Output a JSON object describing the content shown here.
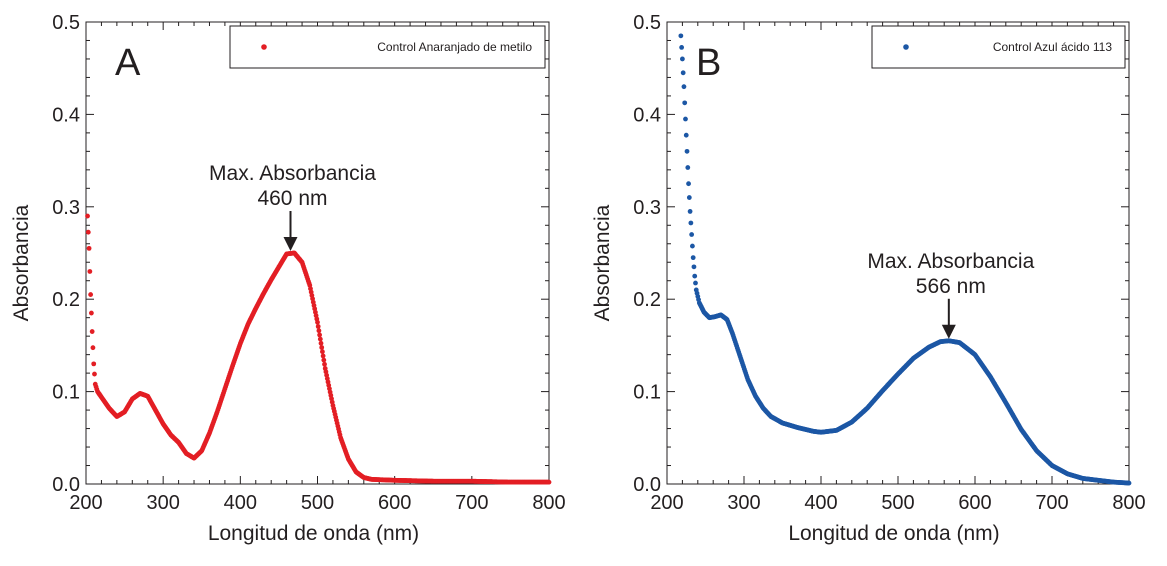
{
  "chart_data": [
    {
      "type": "scatter",
      "panel_label": "A",
      "xlabel_main": "Longitud de onda",
      "xlabel_unit": "(nm)",
      "ylabel": "Absorbancia",
      "xlim": [
        200,
        800
      ],
      "ylim": [
        0,
        0.5
      ],
      "x_ticks": [
        "200",
        "300",
        "400",
        "500",
        "600",
        "700",
        "800"
      ],
      "y_ticks": [
        "0.0",
        "0.1",
        "0.2",
        "0.3",
        "0.4",
        "0.5"
      ],
      "grid": false,
      "legend_position": "top-right",
      "series": [
        {
          "name": "Control Anaranjado de metilo",
          "color": "#e31e24",
          "points": [
            [
              202,
              0.29
            ],
            [
              204,
              0.255
            ],
            [
              206,
              0.205
            ],
            [
              208,
              0.165
            ],
            [
              210,
              0.13
            ],
            [
              212,
              0.108
            ],
            [
              215,
              0.1
            ],
            [
              220,
              0.094
            ],
            [
              230,
              0.082
            ],
            [
              240,
              0.073
            ],
            [
              250,
              0.078
            ],
            [
              260,
              0.092
            ],
            [
              270,
              0.098
            ],
            [
              280,
              0.095
            ],
            [
              290,
              0.08
            ],
            [
              300,
              0.065
            ],
            [
              310,
              0.053
            ],
            [
              320,
              0.045
            ],
            [
              330,
              0.033
            ],
            [
              340,
              0.028
            ],
            [
              350,
              0.036
            ],
            [
              360,
              0.055
            ],
            [
              370,
              0.078
            ],
            [
              380,
              0.103
            ],
            [
              390,
              0.128
            ],
            [
              400,
              0.152
            ],
            [
              410,
              0.173
            ],
            [
              420,
              0.19
            ],
            [
              430,
              0.206
            ],
            [
              440,
              0.221
            ],
            [
              450,
              0.235
            ],
            [
              460,
              0.249
            ],
            [
              470,
              0.25
            ],
            [
              480,
              0.24
            ],
            [
              490,
              0.215
            ],
            [
              500,
              0.175
            ],
            [
              510,
              0.125
            ],
            [
              520,
              0.085
            ],
            [
              530,
              0.05
            ],
            [
              540,
              0.027
            ],
            [
              550,
              0.013
            ],
            [
              560,
              0.007
            ],
            [
              570,
              0.005
            ],
            [
              600,
              0.004
            ],
            [
              650,
              0.003
            ],
            [
              700,
              0.003
            ],
            [
              750,
              0.002
            ],
            [
              800,
              0.002
            ]
          ]
        }
      ],
      "annotation": {
        "line1": "Max. Absorbancia",
        "line2": "460 nm",
        "x": 465,
        "y": 0.25
      }
    },
    {
      "type": "scatter",
      "panel_label": "B",
      "xlabel_main": "Longitud de onda",
      "xlabel_unit": "(nm)",
      "ylabel": "Absorbancia",
      "xlim": [
        200,
        800
      ],
      "ylim": [
        0,
        0.5
      ],
      "x_ticks": [
        "200",
        "300",
        "400",
        "500",
        "600",
        "700",
        "800"
      ],
      "y_ticks": [
        "0.0",
        "0.1",
        "0.2",
        "0.3",
        "0.4",
        "0.5"
      ],
      "grid": false,
      "legend_position": "top-right",
      "series": [
        {
          "name": "Control Azul ácido 113",
          "color": "#1c57a5",
          "points": [
            [
              218,
              0.485
            ],
            [
              220,
              0.46
            ],
            [
              222,
              0.43
            ],
            [
              224,
              0.395
            ],
            [
              226,
              0.36
            ],
            [
              228,
              0.325
            ],
            [
              230,
              0.295
            ],
            [
              232,
              0.27
            ],
            [
              234,
              0.245
            ],
            [
              236,
              0.225
            ],
            [
              238,
              0.21
            ],
            [
              242,
              0.196
            ],
            [
              248,
              0.186
            ],
            [
              255,
              0.18
            ],
            [
              262,
              0.181
            ],
            [
              270,
              0.183
            ],
            [
              278,
              0.178
            ],
            [
              285,
              0.163
            ],
            [
              295,
              0.138
            ],
            [
              305,
              0.113
            ],
            [
              315,
              0.095
            ],
            [
              325,
              0.082
            ],
            [
              335,
              0.073
            ],
            [
              350,
              0.066
            ],
            [
              370,
              0.061
            ],
            [
              390,
              0.057
            ],
            [
              400,
              0.056
            ],
            [
              420,
              0.058
            ],
            [
              440,
              0.067
            ],
            [
              460,
              0.082
            ],
            [
              480,
              0.101
            ],
            [
              500,
              0.119
            ],
            [
              520,
              0.136
            ],
            [
              540,
              0.148
            ],
            [
              555,
              0.154
            ],
            [
              566,
              0.155
            ],
            [
              580,
              0.153
            ],
            [
              600,
              0.14
            ],
            [
              620,
              0.116
            ],
            [
              640,
              0.088
            ],
            [
              660,
              0.059
            ],
            [
              680,
              0.036
            ],
            [
              700,
              0.02
            ],
            [
              720,
              0.011
            ],
            [
              740,
              0.006
            ],
            [
              760,
              0.004
            ],
            [
              780,
              0.002
            ],
            [
              800,
              0.001
            ]
          ]
        }
      ],
      "annotation": {
        "line1": "Max. Absorbancia",
        "line2": "566 nm",
        "x": 566,
        "y": 0.155
      }
    }
  ]
}
